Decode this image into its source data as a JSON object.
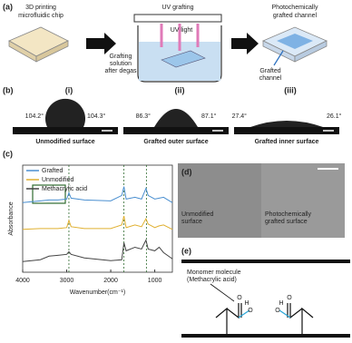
{
  "panel_a": {
    "label": "(a)",
    "chip_caption": [
      "3D printing",
      "microfluidic chip"
    ],
    "step_title": "UV grafting",
    "uv_label": "UV light",
    "solution_label": [
      "Grafting",
      "solution",
      "after degas"
    ],
    "result_caption": [
      "Photochemically",
      "grafted channel"
    ],
    "channel_label": [
      "Grafted",
      "channel"
    ]
  },
  "panel_b": {
    "label": "(b)",
    "images": [
      {
        "label": "(i)",
        "left_angle": "104.2°",
        "right_angle": "104.3°",
        "caption": "Unmodified surface"
      },
      {
        "label": "(ii)",
        "left_angle": "86.3°",
        "right_angle": "87.1°",
        "caption": "Grafted outer surface"
      },
      {
        "label": "(iii)",
        "left_angle": "27.4°",
        "right_angle": "26.1°",
        "caption": "Grafted inner surface"
      }
    ]
  },
  "chart_data": {
    "label": "(c)",
    "type": "line",
    "x": [
      4000,
      3600,
      3400,
      3200,
      3000,
      2950,
      2900,
      2600,
      2000,
      1750,
      1700,
      1650,
      1450,
      1300,
      1200,
      1150,
      1000,
      900,
      800,
      600
    ],
    "series": [
      {
        "name": "Grafted",
        "color": "#4a8fd0",
        "values": [
          7.8,
          8.0,
          8.1,
          8.1,
          8.2,
          8.9,
          8.3,
          8.1,
          8.0,
          8.6,
          9.6,
          8.2,
          8.4,
          8.2,
          9.4,
          8.6,
          8.2,
          8.3,
          8.4,
          7.8
        ]
      },
      {
        "name": "Unmodified",
        "color": "#e0b030",
        "values": [
          4.8,
          4.9,
          4.9,
          4.9,
          5.0,
          5.8,
          5.1,
          4.9,
          4.9,
          5.3,
          6.3,
          5.0,
          5.3,
          5.1,
          6.0,
          5.4,
          5.0,
          5.2,
          5.3,
          4.8
        ]
      },
      {
        "name": "Methacrylic acid",
        "color": "#444444",
        "values": [
          1.2,
          1.4,
          1.8,
          1.9,
          2.0,
          2.3,
          2.0,
          1.6,
          1.3,
          1.4,
          3.3,
          2.4,
          2.8,
          2.6,
          3.6,
          2.6,
          2.4,
          2.8,
          2.2,
          1.5
        ]
      }
    ],
    "xlim": [
      4000,
      600
    ],
    "ylim": [
      0,
      12
    ],
    "xticks": [
      4000,
      3000,
      2000,
      1000
    ],
    "xlabel": "Wavenumber(cm⁻¹)",
    "ylabel": "Absorbance",
    "reference_lines": [
      2950,
      1700,
      1190
    ]
  },
  "panel_d": {
    "label": "(d)",
    "captions": [
      [
        "Unmodified",
        "surface"
      ],
      [
        "Photochemically",
        "grafted surface"
      ]
    ]
  },
  "panel_e": {
    "label": "(e)",
    "annotation": [
      "Monomer molecule",
      "(Methacrylic acid)"
    ],
    "molecules": [
      [
        "O",
        "O",
        "H"
      ],
      [
        "O",
        "O",
        "H"
      ]
    ]
  }
}
